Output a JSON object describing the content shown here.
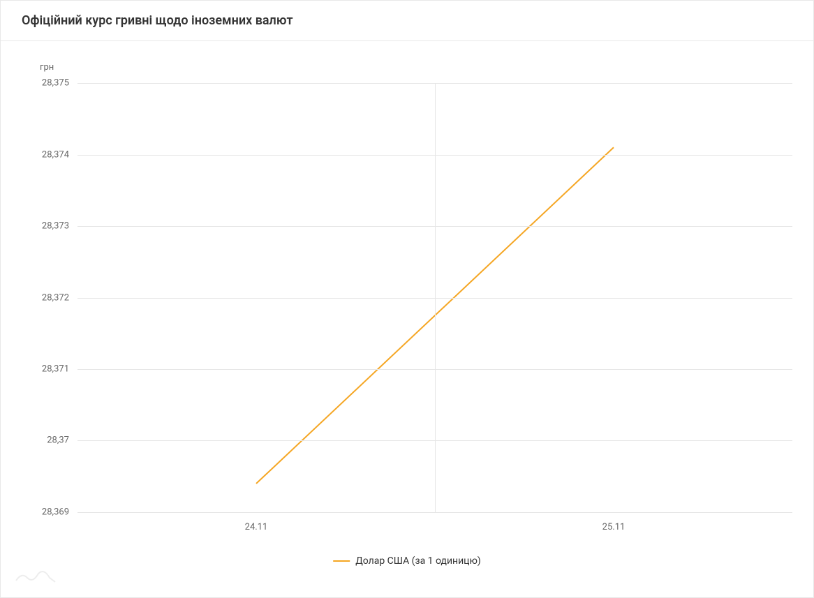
{
  "header": {
    "title": "Офіційний курс гривні щодо іноземних валют"
  },
  "chart": {
    "type": "line",
    "y_axis": {
      "unit_label": "грн",
      "min": 28.369,
      "max": 28.375,
      "ticks": [
        {
          "value": 28.375,
          "label": "28,375"
        },
        {
          "value": 28.374,
          "label": "28,374"
        },
        {
          "value": 28.373,
          "label": "28,373"
        },
        {
          "value": 28.372,
          "label": "28,372"
        },
        {
          "value": 28.371,
          "label": "28,371"
        },
        {
          "value": 28.37,
          "label": "28,37"
        },
        {
          "value": 28.369,
          "label": "28,369"
        }
      ],
      "label_fontsize": 13,
      "label_color": "#666666"
    },
    "x_axis": {
      "ticks": [
        {
          "position": 0.25,
          "label": "24.11"
        },
        {
          "position": 0.75,
          "label": "25.11"
        }
      ],
      "label_fontsize": 13,
      "label_color": "#666666"
    },
    "grid": {
      "color": "#e6e6e6",
      "vertical_positions": [
        0.5
      ],
      "show_horizontal": true
    },
    "series": [
      {
        "name": "Долар США (за 1 одиницю)",
        "color": "#f5a623",
        "line_width": 2,
        "points": [
          {
            "x": 0.25,
            "y": 28.3694
          },
          {
            "x": 0.75,
            "y": 28.3741
          }
        ]
      }
    ],
    "legend": {
      "position": "bottom-center",
      "fontsize": 14,
      "text_color": "#333333"
    },
    "background_color": "#ffffff",
    "border_color": "#e8e8e8"
  },
  "watermark": {
    "color": "#cccccc"
  }
}
